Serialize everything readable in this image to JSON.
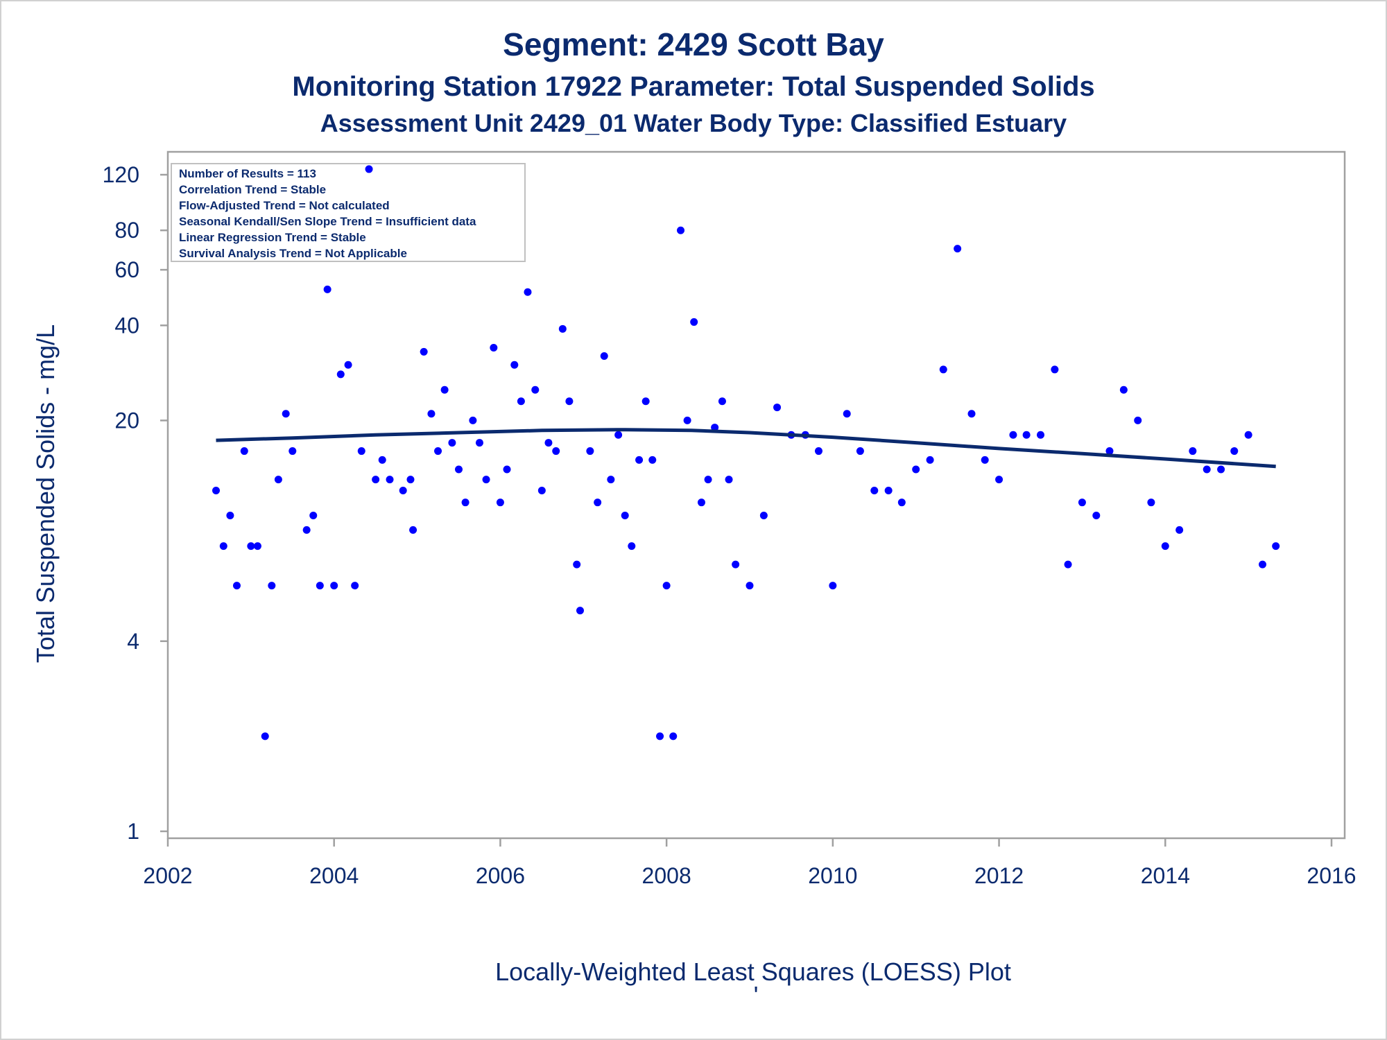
{
  "titles": {
    "line1": "Segment: 2429  Scott Bay",
    "line2": "Monitoring Station 17922 Parameter: Total Suspended Solids",
    "line3": "Assessment Unit 2429_01   Water Body Type: Classified Estuary"
  },
  "info_box": [
    "Number of Results = 113",
    "Correlation Trend = Stable",
    "Flow-Adjusted Trend = Not calculated",
    "Seasonal Kendall/Sen Slope Trend = Insufficient data",
    "Linear Regression Trend = Stable",
    "Survival Analysis Trend = Not Applicable"
  ],
  "footer": {
    "caption": "Locally-Weighted Least Squares (LOESS) Plot",
    "mark": "'"
  },
  "colors": {
    "text": "#0b2a6e",
    "points": "#0000ff",
    "loess": "#0b2a6e",
    "frame": "#a0a0a0"
  },
  "chart_data": {
    "type": "scatter",
    "ylabel": "Total Suspended Solids - mg/L",
    "xlabel": "",
    "x_ticks": [
      2002,
      2004,
      2006,
      2008,
      2010,
      2012,
      2014,
      2016
    ],
    "y_ticks": [
      1,
      4,
      20,
      40,
      60,
      80,
      120
    ],
    "xlim": [
      2002,
      2016
    ],
    "ylim": [
      1,
      120
    ],
    "y_scale": "log",
    "points": [
      {
        "x": 2002.58,
        "y": 12
      },
      {
        "x": 2002.67,
        "y": 8
      },
      {
        "x": 2002.75,
        "y": 10
      },
      {
        "x": 2002.83,
        "y": 6
      },
      {
        "x": 2002.92,
        "y": 16
      },
      {
        "x": 2003.0,
        "y": 8
      },
      {
        "x": 2003.08,
        "y": 8
      },
      {
        "x": 2003.17,
        "y": 2
      },
      {
        "x": 2003.25,
        "y": 6
      },
      {
        "x": 2003.33,
        "y": 13
      },
      {
        "x": 2003.42,
        "y": 21
      },
      {
        "x": 2003.5,
        "y": 16
      },
      {
        "x": 2003.67,
        "y": 9
      },
      {
        "x": 2003.75,
        "y": 10
      },
      {
        "x": 2003.83,
        "y": 6
      },
      {
        "x": 2003.92,
        "y": 52
      },
      {
        "x": 2004.0,
        "y": 6
      },
      {
        "x": 2004.08,
        "y": 28
      },
      {
        "x": 2004.17,
        "y": 30
      },
      {
        "x": 2004.25,
        "y": 6
      },
      {
        "x": 2004.33,
        "y": 16
      },
      {
        "x": 2004.42,
        "y": 125
      },
      {
        "x": 2004.5,
        "y": 13
      },
      {
        "x": 2004.58,
        "y": 15
      },
      {
        "x": 2004.67,
        "y": 13
      },
      {
        "x": 2004.83,
        "y": 12
      },
      {
        "x": 2004.92,
        "y": 13
      },
      {
        "x": 2004.95,
        "y": 9
      },
      {
        "x": 2005.08,
        "y": 33
      },
      {
        "x": 2005.17,
        "y": 21
      },
      {
        "x": 2005.25,
        "y": 16
      },
      {
        "x": 2005.33,
        "y": 25
      },
      {
        "x": 2005.42,
        "y": 17
      },
      {
        "x": 2005.5,
        "y": 14
      },
      {
        "x": 2005.58,
        "y": 11
      },
      {
        "x": 2005.67,
        "y": 20
      },
      {
        "x": 2005.75,
        "y": 17
      },
      {
        "x": 2005.83,
        "y": 13
      },
      {
        "x": 2005.92,
        "y": 34
      },
      {
        "x": 2006.0,
        "y": 11
      },
      {
        "x": 2006.08,
        "y": 14
      },
      {
        "x": 2006.17,
        "y": 30
      },
      {
        "x": 2006.25,
        "y": 23
      },
      {
        "x": 2006.33,
        "y": 51
      },
      {
        "x": 2006.42,
        "y": 25
      },
      {
        "x": 2006.5,
        "y": 12
      },
      {
        "x": 2006.58,
        "y": 17
      },
      {
        "x": 2006.67,
        "y": 16
      },
      {
        "x": 2006.75,
        "y": 39
      },
      {
        "x": 2006.83,
        "y": 23
      },
      {
        "x": 2006.92,
        "y": 7
      },
      {
        "x": 2006.96,
        "y": 5
      },
      {
        "x": 2007.08,
        "y": 16
      },
      {
        "x": 2007.17,
        "y": 11
      },
      {
        "x": 2007.25,
        "y": 32
      },
      {
        "x": 2007.33,
        "y": 13
      },
      {
        "x": 2007.42,
        "y": 18
      },
      {
        "x": 2007.5,
        "y": 10
      },
      {
        "x": 2007.58,
        "y": 8
      },
      {
        "x": 2007.67,
        "y": 15
      },
      {
        "x": 2007.75,
        "y": 23
      },
      {
        "x": 2007.83,
        "y": 15
      },
      {
        "x": 2007.92,
        "y": 2
      },
      {
        "x": 2008.0,
        "y": 6
      },
      {
        "x": 2008.08,
        "y": 2
      },
      {
        "x": 2008.17,
        "y": 80
      },
      {
        "x": 2008.25,
        "y": 20
      },
      {
        "x": 2008.33,
        "y": 41
      },
      {
        "x": 2008.42,
        "y": 11
      },
      {
        "x": 2008.5,
        "y": 13
      },
      {
        "x": 2008.58,
        "y": 19
      },
      {
        "x": 2008.67,
        "y": 23
      },
      {
        "x": 2008.75,
        "y": 13
      },
      {
        "x": 2008.83,
        "y": 7
      },
      {
        "x": 2009.0,
        "y": 6
      },
      {
        "x": 2009.17,
        "y": 10
      },
      {
        "x": 2009.33,
        "y": 22
      },
      {
        "x": 2009.5,
        "y": 18
      },
      {
        "x": 2009.67,
        "y": 18
      },
      {
        "x": 2009.83,
        "y": 16
      },
      {
        "x": 2010.0,
        "y": 6
      },
      {
        "x": 2010.17,
        "y": 21
      },
      {
        "x": 2010.33,
        "y": 16
      },
      {
        "x": 2010.5,
        "y": 12
      },
      {
        "x": 2010.67,
        "y": 12
      },
      {
        "x": 2010.83,
        "y": 11
      },
      {
        "x": 2011.0,
        "y": 14
      },
      {
        "x": 2011.17,
        "y": 15
      },
      {
        "x": 2011.33,
        "y": 29
      },
      {
        "x": 2011.5,
        "y": 70
      },
      {
        "x": 2011.67,
        "y": 21
      },
      {
        "x": 2011.83,
        "y": 15
      },
      {
        "x": 2012.0,
        "y": 13
      },
      {
        "x": 2012.17,
        "y": 18
      },
      {
        "x": 2012.33,
        "y": 18
      },
      {
        "x": 2012.5,
        "y": 18
      },
      {
        "x": 2012.67,
        "y": 29
      },
      {
        "x": 2012.83,
        "y": 7
      },
      {
        "x": 2013.0,
        "y": 11
      },
      {
        "x": 2013.17,
        "y": 10
      },
      {
        "x": 2013.33,
        "y": 16
      },
      {
        "x": 2013.5,
        "y": 25
      },
      {
        "x": 2013.67,
        "y": 20
      },
      {
        "x": 2013.83,
        "y": 11
      },
      {
        "x": 2014.0,
        "y": 8
      },
      {
        "x": 2014.17,
        "y": 9
      },
      {
        "x": 2014.33,
        "y": 16
      },
      {
        "x": 2014.5,
        "y": 14
      },
      {
        "x": 2014.67,
        "y": 14
      },
      {
        "x": 2014.83,
        "y": 16
      },
      {
        "x": 2015.0,
        "y": 18
      },
      {
        "x": 2015.17,
        "y": 7
      },
      {
        "x": 2015.33,
        "y": 8
      }
    ],
    "loess": [
      {
        "x": 2002.58,
        "y": 17.3
      },
      {
        "x": 2003.5,
        "y": 17.6
      },
      {
        "x": 2004.5,
        "y": 18.0
      },
      {
        "x": 2005.5,
        "y": 18.3
      },
      {
        "x": 2006.5,
        "y": 18.6
      },
      {
        "x": 2007.5,
        "y": 18.7
      },
      {
        "x": 2008.3,
        "y": 18.6
      },
      {
        "x": 2009.0,
        "y": 18.3
      },
      {
        "x": 2010.0,
        "y": 17.7
      },
      {
        "x": 2011.0,
        "y": 17.0
      },
      {
        "x": 2012.0,
        "y": 16.3
      },
      {
        "x": 2013.0,
        "y": 15.7
      },
      {
        "x": 2014.0,
        "y": 15.1
      },
      {
        "x": 2015.33,
        "y": 14.3
      }
    ]
  }
}
